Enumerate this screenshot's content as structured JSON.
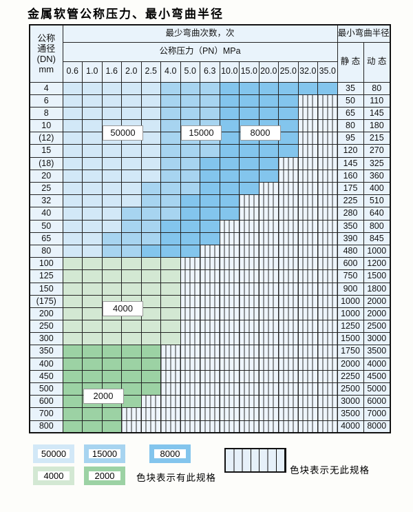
{
  "title": "金属软管公称压力、最小弯曲半径",
  "table": {
    "dn_header_lines": [
      "公称",
      "通径",
      "(DN)",
      "mm"
    ],
    "bend_count_header": "最少弯曲次数，次",
    "pressure_header": "公称压力（PN）MPa",
    "radius_header": "最小弯曲半径",
    "static_header": "静 态",
    "dynamic_header": "动 态",
    "pressure_columns": [
      "0.6",
      "1.0",
      "1.6",
      "2.0",
      "2.5",
      "4.0",
      "5.0",
      "6.3",
      "10.0",
      "15.0",
      "20.0",
      "25.0",
      "32.0",
      "35.0"
    ],
    "rows": [
      {
        "dn": "4",
        "cells": "LLLLLMMMDDDDDD",
        "static": "35",
        "dynamic": "80"
      },
      {
        "dn": "6",
        "cells": "LLLLLMMMDDDDXX",
        "static": "50",
        "dynamic": "110"
      },
      {
        "dn": "8",
        "cells": "LLLLLMMMDDDDXX",
        "static": "65",
        "dynamic": "145"
      },
      {
        "dn": "10",
        "cells": "LLLLLMMMDDDDXX",
        "static": "80",
        "dynamic": "180"
      },
      {
        "dn": "(12)",
        "cells": "LLLLLMMMDDDDXX",
        "static": "95",
        "dynamic": "215"
      },
      {
        "dn": "15",
        "cells": "LLLLLMMMDDDDXX",
        "static": "120",
        "dynamic": "270"
      },
      {
        "dn": "(18)",
        "cells": "LLLLLMMDDDDXXX",
        "static": "145",
        "dynamic": "325"
      },
      {
        "dn": "20",
        "cells": "LLLLLMMDDDDXXX",
        "static": "160",
        "dynamic": "360"
      },
      {
        "dn": "25",
        "cells": "LLLLMMMDDDXXXX",
        "static": "175",
        "dynamic": "400"
      },
      {
        "dn": "32",
        "cells": "LLLLMMDDDXXXXX",
        "static": "225",
        "dynamic": "510"
      },
      {
        "dn": "40",
        "cells": "LLLMMMDDDXXXXX",
        "static": "280",
        "dynamic": "640"
      },
      {
        "dn": "50",
        "cells": "LLLMMDDDXXXXXX",
        "static": "350",
        "dynamic": "800"
      },
      {
        "dn": "65",
        "cells": "LLMMMDDDXXXXXX",
        "static": "390",
        "dynamic": "845"
      },
      {
        "dn": "80",
        "cells": "LLMMDDDXXXXXXX",
        "static": "480",
        "dynamic": "1000"
      },
      {
        "dn": "100",
        "cells": "PPPPPPXXXXXXXX",
        "static": "600",
        "dynamic": "1200"
      },
      {
        "dn": "125",
        "cells": "PPPPPPXXXXXXXX",
        "static": "750",
        "dynamic": "1500"
      },
      {
        "dn": "150",
        "cells": "PPPPPPXXXXXXXX",
        "static": "900",
        "dynamic": "1800"
      },
      {
        "dn": "(175)",
        "cells": "PPPPPPXXXXXXXX",
        "static": "1000",
        "dynamic": "2000"
      },
      {
        "dn": "200",
        "cells": "PPPPPPXXXXXXXX",
        "static": "1000",
        "dynamic": "2000"
      },
      {
        "dn": "250",
        "cells": "PPPPPPXXXXXXXX",
        "static": "1250",
        "dynamic": "2500"
      },
      {
        "dn": "300",
        "cells": "PPPPPPXXXXXXXX",
        "static": "1500",
        "dynamic": "3000"
      },
      {
        "dn": "350",
        "cells": "GGGGGXXXXXXXXX",
        "static": "1750",
        "dynamic": "3500"
      },
      {
        "dn": "400",
        "cells": "GGGGGXXXXXXXXX",
        "static": "2000",
        "dynamic": "4000"
      },
      {
        "dn": "450",
        "cells": "GGGGGXXXXXXXXX",
        "static": "2250",
        "dynamic": "4500"
      },
      {
        "dn": "500",
        "cells": "GGGGGXXXXXXXXX",
        "static": "2500",
        "dynamic": "5000"
      },
      {
        "dn": "600",
        "cells": "GGGGXXXXXXXXXX",
        "static": "3000",
        "dynamic": "6000"
      },
      {
        "dn": "700",
        "cells": "GGGXXXXXXXXXXX",
        "static": "3500",
        "dynamic": "7000"
      },
      {
        "dn": "800",
        "cells": "GGGXXXXXXXXXXX",
        "static": "4000",
        "dynamic": "8000"
      }
    ]
  },
  "overlays": [
    {
      "label": "50000",
      "col_start": 2,
      "col_span": 2,
      "row_boundary": 4
    },
    {
      "label": "15000",
      "col_start": 6,
      "col_span": 2,
      "row_boundary": 4
    },
    {
      "label": "8000",
      "col_start": 9,
      "col_span": 2,
      "row_boundary": 4
    },
    {
      "label": "4000",
      "col_start": 2,
      "col_span": 2,
      "row_boundary": 18
    },
    {
      "label": "2000",
      "col_start": 1,
      "col_span": 2,
      "row_boundary": 25
    }
  ],
  "legend": {
    "swatches": [
      {
        "label": "50000",
        "tone": "L"
      },
      {
        "label": "15000",
        "tone": "M"
      },
      {
        "label": "8000",
        "tone": "D"
      },
      {
        "label": "4000",
        "tone": "P"
      },
      {
        "label": "2000",
        "tone": "G"
      }
    ],
    "has_spec_text": "色块表示有此规格",
    "no_spec_text": "色块表示无此规格"
  },
  "colors": {
    "L": "#d2e8f7",
    "M": "#a7d4f0",
    "D": "#83c5ed",
    "P": "#d3e8d3",
    "G": "#9cd2a4",
    "stripeBg": "#eef5fc",
    "pale": "#e9f3fb"
  }
}
